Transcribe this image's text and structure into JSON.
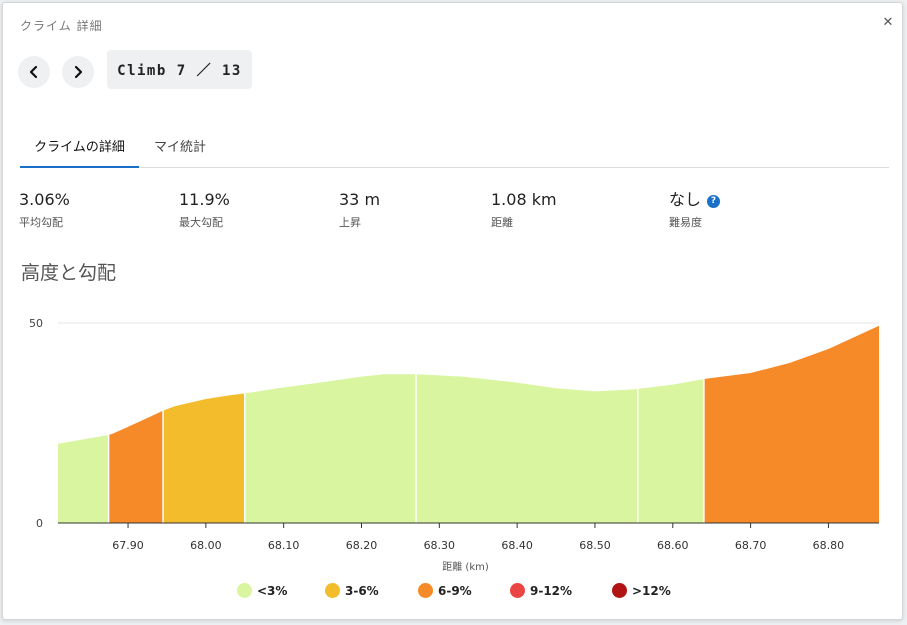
{
  "dialog": {
    "title": "クライム 詳細",
    "close_glyph": "✕",
    "counter": "Climb 7 ／ 13"
  },
  "tabs": [
    {
      "label": "クライムの詳細",
      "active": true
    },
    {
      "label": "マイ統計",
      "active": false
    }
  ],
  "stats": [
    {
      "value": "3.06%",
      "label": "平均勾配"
    },
    {
      "value": "11.9%",
      "label": "最大勾配"
    },
    {
      "value": "33 m",
      "label": "上昇"
    },
    {
      "value": "1.08 km",
      "label": "距離"
    },
    {
      "value": "なし",
      "label": "難易度",
      "help_icon": "question-circle-icon",
      "help_glyph": "?"
    }
  ],
  "section_title": "高度と勾配",
  "chart_data": {
    "type": "area",
    "xlabel": "距離 (km)",
    "ylabel": "",
    "xlim": [
      67.81,
      68.865
    ],
    "ylim": [
      0,
      50
    ],
    "x_ticks": [
      67.9,
      68.0,
      68.1,
      68.2,
      68.3,
      68.4,
      68.5,
      68.6,
      68.7,
      68.8
    ],
    "x_tick_labels": [
      "67.90",
      "68.00",
      "68.10",
      "68.20",
      "68.30",
      "68.40",
      "68.50",
      "68.60",
      "68.70",
      "68.80"
    ],
    "y_ticks": [
      0,
      50
    ],
    "y_tick_labels": [
      "0",
      "50"
    ],
    "grid": true,
    "profile": [
      [
        67.81,
        19.8
      ],
      [
        67.875,
        22.0
      ],
      [
        67.88,
        22.3
      ],
      [
        67.92,
        25.8
      ],
      [
        67.945,
        28.1
      ],
      [
        67.96,
        29.2
      ],
      [
        68.0,
        31.0
      ],
      [
        68.03,
        31.9
      ],
      [
        68.05,
        32.4
      ],
      [
        68.06,
        32.7
      ],
      [
        68.1,
        33.9
      ],
      [
        68.15,
        35.2
      ],
      [
        68.2,
        36.6
      ],
      [
        68.23,
        37.2
      ],
      [
        68.27,
        37.2
      ],
      [
        68.33,
        36.6
      ],
      [
        68.4,
        35.1
      ],
      [
        68.45,
        33.7
      ],
      [
        68.5,
        32.9
      ],
      [
        68.55,
        33.4
      ],
      [
        68.6,
        34.6
      ],
      [
        68.64,
        36.0
      ],
      [
        68.7,
        37.5
      ],
      [
        68.75,
        40.0
      ],
      [
        68.8,
        43.5
      ],
      [
        68.865,
        49.3
      ]
    ],
    "segments": [
      {
        "from": 67.81,
        "to": 67.875,
        "category": "<3%"
      },
      {
        "from": 67.875,
        "to": 67.945,
        "category": "6-9%"
      },
      {
        "from": 67.945,
        "to": 68.05,
        "category": "3-6%"
      },
      {
        "from": 68.05,
        "to": 68.27,
        "category": "<3%"
      },
      {
        "from": 68.27,
        "to": 68.555,
        "category": "<3%"
      },
      {
        "from": 68.555,
        "to": 68.64,
        "category": "<3%"
      },
      {
        "from": 68.64,
        "to": 68.865,
        "category": "6-9%"
      }
    ],
    "legend": [
      {
        "label": "<3%",
        "color": "#d9f5a0"
      },
      {
        "label": "3-6%",
        "color": "#f2bc2c"
      },
      {
        "label": "6-9%",
        "color": "#f78a28"
      },
      {
        "label": "9-12%",
        "color": "#ea4545"
      },
      {
        "label": ">12%",
        "color": "#b01414"
      }
    ]
  }
}
